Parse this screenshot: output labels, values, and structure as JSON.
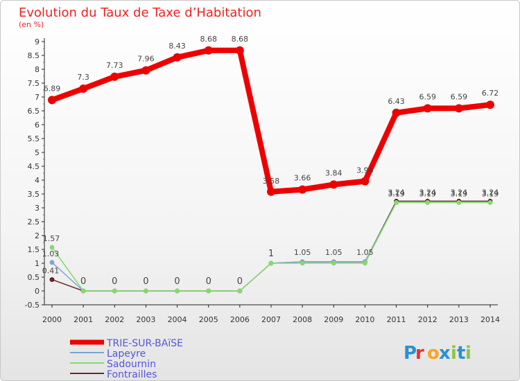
{
  "chart_data": {
    "type": "line",
    "title": "Evolution du Taux de Taxe d’Habitation",
    "subtitle": "(en %)",
    "xlabel": "",
    "ylabel": "",
    "categories": [
      "2000",
      "2001",
      "2002",
      "2003",
      "2004",
      "2005",
      "2006",
      "2007",
      "2008",
      "2009",
      "2010",
      "2011",
      "2012",
      "2013",
      "2014"
    ],
    "ylim": [
      -0.5,
      9
    ],
    "yticks": [
      "-0.5",
      "0",
      "0.5",
      "1",
      "1.5",
      "2",
      "2.5",
      "3",
      "3.5",
      "4",
      "4.5",
      "5",
      "5.5",
      "6",
      "6.5",
      "7",
      "7.5",
      "8",
      "8.5",
      "9"
    ],
    "grid": false,
    "legend_position": "bottom-left",
    "series": [
      {
        "name": "TRIE-SUR-BAïSE",
        "color": "#ee0000",
        "width": 8,
        "values": [
          6.89,
          7.3,
          7.73,
          7.96,
          8.43,
          8.68,
          8.68,
          3.58,
          3.66,
          3.84,
          3.96,
          6.43,
          6.59,
          6.59,
          6.72
        ],
        "labels": [
          "6.89",
          "7.3",
          "7.73",
          "7.96",
          "8.43",
          "8.68",
          "8.68",
          "3.58",
          "3.66",
          "3.84",
          "3.96",
          "6.43",
          "6.59",
          "6.59",
          "6.72"
        ]
      },
      {
        "name": "Lapeyre",
        "color": "#7aa6d1",
        "width": 1,
        "values": [
          1.03,
          0,
          0,
          0,
          0,
          0,
          0,
          1,
          1.05,
          1.05,
          1.05,
          3.19,
          3.19,
          3.19,
          3.19
        ],
        "labels": [
          "1.03",
          "",
          "",
          "",
          "",
          "",
          "",
          "",
          "",
          "",
          "",
          "",
          "",
          "",
          ""
        ]
      },
      {
        "name": "Sadournin",
        "color": "#86d96b",
        "width": 1,
        "values": [
          1.57,
          0,
          0,
          0,
          0,
          0,
          0,
          1,
          1,
          1,
          1,
          3.19,
          3.19,
          3.19,
          3.19
        ],
        "labels": [
          "1.57",
          "",
          "",
          "",
          "",
          "",
          "",
          "",
          "",
          "",
          "",
          "3.19",
          "3.19",
          "3.19",
          "3.19"
        ]
      },
      {
        "name": "Fontrailles",
        "color": "#6b2a2a",
        "width": 1,
        "values": [
          0.41,
          0,
          0,
          0,
          0,
          0,
          0,
          1,
          1.05,
          1.05,
          1.05,
          3.24,
          3.24,
          3.24,
          3.24
        ],
        "labels": [
          "0.41",
          "0",
          "0",
          "0",
          "0",
          "0",
          "0",
          "1",
          "1.05",
          "1.05",
          "1.05",
          "3.24",
          "3.24",
          "3.24",
          "3.24"
        ]
      }
    ]
  },
  "logo": {
    "text": "Proxiti",
    "letters": [
      "P",
      "r",
      "o",
      "x",
      "i",
      "t",
      "i"
    ],
    "colors": [
      "#2a8fd6",
      "#e3342f",
      "#f5a623",
      "#2a8fd6",
      "#8cc63f",
      "#2a8fd6",
      "#8cc63f"
    ]
  }
}
